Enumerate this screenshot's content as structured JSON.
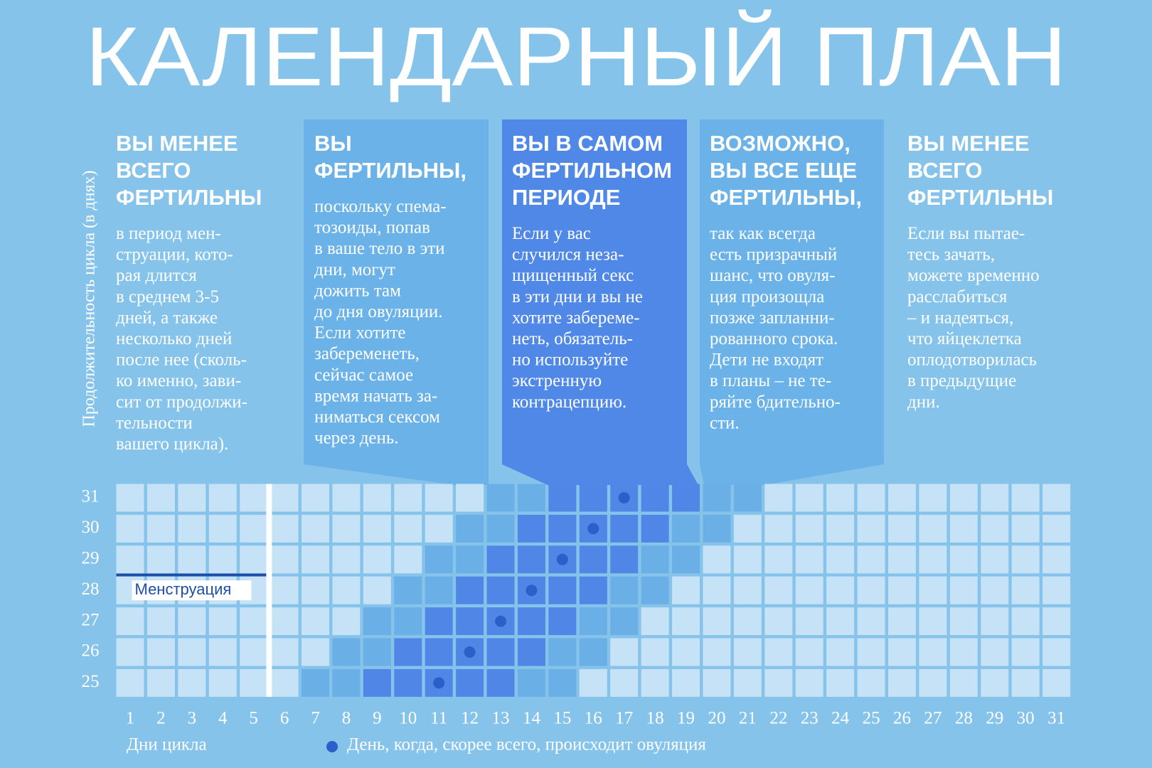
{
  "title": "КАЛЕНДАРНЫЙ ПЛАН",
  "columns": [
    {
      "heading": [
        "ВЫ МЕНЕЕ",
        "ВСЕГО",
        "ФЕРТИЛЬНЫ"
      ],
      "text": [
        "в период мен-",
        "струации, кото-",
        "рая длится",
        "в среднем 3-5",
        "дней, а также",
        "несколько дней",
        "после нее (сколь-",
        "ко именно, зави-",
        "сит от продолжи-",
        "тельности",
        "вашего цикла)."
      ]
    },
    {
      "heading": [
        "ВЫ",
        "ФЕРТИЛЬНЫ,"
      ],
      "text": [
        "поскольку спема-",
        "тозоиды, попав",
        "в ваше тело в эти",
        "дни, могут",
        "дожить там",
        "до дня овуляции.",
        "Если хотите",
        "забеременеть,",
        "сейчас самое",
        "время начать за-",
        "ниматься сексом",
        "через день."
      ]
    },
    {
      "heading": [
        "ВЫ В САМОМ",
        "ФЕРТИЛЬНОМ",
        "ПЕРИОДЕ"
      ],
      "text": [
        "Если у вас",
        "случился неза-",
        "щищенный секс",
        "в эти дни и вы не",
        "хотите забереме-",
        "неть, обязатель-",
        "но используйте",
        "экстренную",
        "контрацепцию."
      ]
    },
    {
      "heading": [
        "ВОЗМОЖНО,",
        "ВЫ ВСЕ ЕЩЕ",
        "ФЕРТИЛЬНЫ,"
      ],
      "text": [
        "так как всегда",
        "есть призрачный",
        "шанс, что овуля-",
        "ция произощла",
        "позже запланни-",
        "рованного срока.",
        "Дети не входят",
        "в планы – не те-",
        "ряйте бдительно-",
        "сти."
      ]
    },
    {
      "heading": [
        "ВЫ МЕНЕЕ",
        "ВСЕГО",
        "ФЕРТИЛЬНЫ"
      ],
      "text": [
        "Если вы пытае-",
        "тесь зачать,",
        "можете временно",
        "расслабиться",
        "– и надеяться,",
        "что яйцеклетка",
        "оплодотворилась",
        "в предыдущие",
        "дни."
      ]
    }
  ],
  "y_axis_label": "Продолжительность цикла (в днях)",
  "x_axis_label": "Дни цикла",
  "legend": "День, когда, скорее всего, происходит овуляция",
  "menstruation_label": "Менструация",
  "menstruation_days": [
    1,
    5
  ],
  "days": [
    1,
    2,
    3,
    4,
    5,
    6,
    7,
    8,
    9,
    10,
    11,
    12,
    13,
    14,
    15,
    16,
    17,
    18,
    19,
    20,
    21,
    22,
    23,
    24,
    25,
    26,
    27,
    28,
    29,
    30,
    31
  ],
  "rows": [
    {
      "label": 31,
      "fertile": [
        13,
        21
      ],
      "peak": [
        15,
        19
      ],
      "ovulation": 17
    },
    {
      "label": 30,
      "fertile": [
        12,
        20
      ],
      "peak": [
        14,
        18
      ],
      "ovulation": 16
    },
    {
      "label": 29,
      "fertile": [
        11,
        19
      ],
      "peak": [
        13,
        17
      ],
      "ovulation": 15
    },
    {
      "label": 28,
      "fertile": [
        10,
        18
      ],
      "peak": [
        12,
        16
      ],
      "ovulation": 14
    },
    {
      "label": 27,
      "fertile": [
        9,
        17
      ],
      "peak": [
        11,
        15
      ],
      "ovulation": 13
    },
    {
      "label": 26,
      "fertile": [
        8,
        16
      ],
      "peak": [
        10,
        14
      ],
      "ovulation": 12
    },
    {
      "label": 25,
      "fertile": [
        7,
        15
      ],
      "peak": [
        9,
        13
      ],
      "ovulation": 11
    }
  ]
}
